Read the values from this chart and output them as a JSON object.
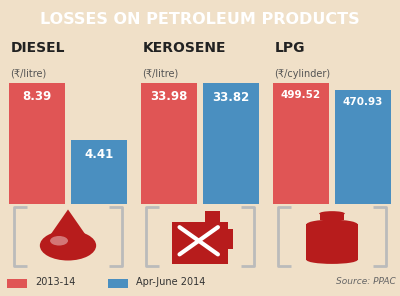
{
  "title": "LOSSES ON PETROLEUM PRODUCTS",
  "title_bg": "#c0392b",
  "bg_color": "#f0e0c8",
  "categories": [
    "DIESEL",
    "KEROSENE",
    "LPG"
  ],
  "subtitles": [
    "(₹/litre)",
    "(₹/litre)",
    "(₹/cylinder)"
  ],
  "values_2013": [
    8.39,
    33.98,
    499.52
  ],
  "values_2014": [
    4.41,
    33.82,
    470.93
  ],
  "labels_2013": [
    "8.39",
    "33.98",
    "499.52"
  ],
  "labels_2014": [
    "4.41",
    "33.82",
    "470.93"
  ],
  "color_2013": "#e05555",
  "color_2014": "#4a8fc0",
  "legend_2013": "2013-14",
  "legend_2014": "Apr-June 2014",
  "source": "Source: PPAC",
  "bracket_color": "#bbbbbb",
  "icon_color": "#b71c1c"
}
